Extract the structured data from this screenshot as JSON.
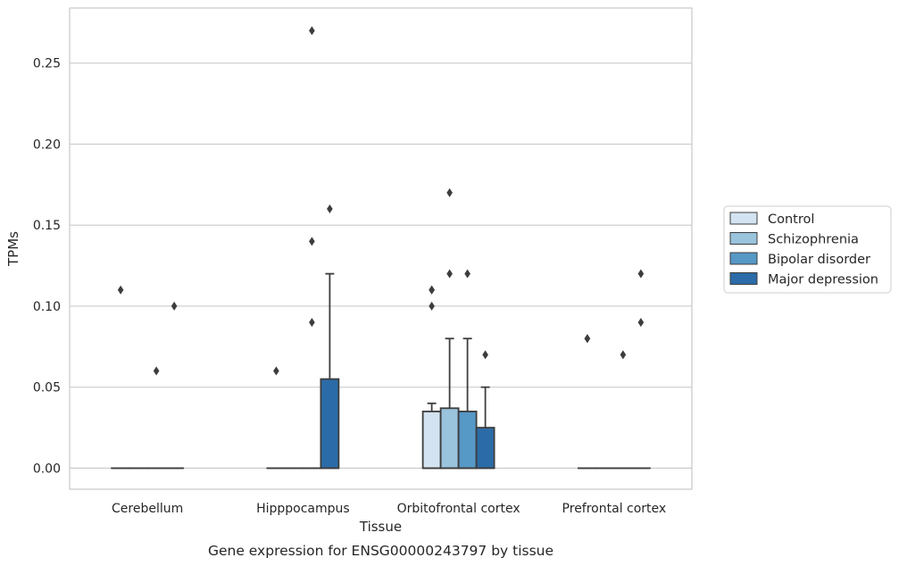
{
  "chart_data": {
    "type": "box",
    "title": "",
    "caption": "Gene expression for ENSG00000243797 by tissue",
    "xlabel": "Tissue",
    "ylabel": "TPMs",
    "ylim": [
      -0.013,
      0.284
    ],
    "yticks": [
      0.0,
      0.05,
      0.1,
      0.15,
      0.2,
      0.25
    ],
    "ytick_labels": [
      "0.00",
      "0.05",
      "0.10",
      "0.15",
      "0.20",
      "0.25"
    ],
    "grid": "horizontal",
    "legend_position": "right",
    "categories": [
      "Cerebellum",
      "Hipppocampus",
      "Orbitofrontal cortex",
      "Prefrontal cortex"
    ],
    "series": [
      {
        "name": "Control",
        "color": "#d3e3f1",
        "boxes": [
          {
            "q1": 0.0,
            "median": 0.0,
            "q3": 0.0,
            "whislo": 0.0,
            "whishi": 0.0,
            "fliers": [
              0.11
            ]
          },
          {
            "q1": 0.0,
            "median": 0.0,
            "q3": 0.0,
            "whislo": 0.0,
            "whishi": 0.0,
            "fliers": [
              0.06
            ]
          },
          {
            "q1": 0.0,
            "median": 0.0,
            "q3": 0.035,
            "whislo": 0.0,
            "whishi": 0.04,
            "fliers": [
              0.1,
              0.11,
              0.11
            ]
          },
          {
            "q1": 0.0,
            "median": 0.0,
            "q3": 0.0,
            "whislo": 0.0,
            "whishi": 0.0,
            "fliers": [
              0.08,
              0.08
            ]
          }
        ]
      },
      {
        "name": "Schizophrenia",
        "color": "#9ac3dc",
        "boxes": [
          {
            "q1": 0.0,
            "median": 0.0,
            "q3": 0.0,
            "whislo": 0.0,
            "whishi": 0.0,
            "fliers": []
          },
          {
            "q1": 0.0,
            "median": 0.0,
            "q3": 0.0,
            "whislo": 0.0,
            "whishi": 0.0,
            "fliers": []
          },
          {
            "q1": 0.0,
            "median": 0.0,
            "q3": 0.037,
            "whislo": 0.0,
            "whishi": 0.08,
            "fliers": [
              0.12,
              0.17
            ]
          },
          {
            "q1": 0.0,
            "median": 0.0,
            "q3": 0.0,
            "whislo": 0.0,
            "whishi": 0.0,
            "fliers": []
          }
        ]
      },
      {
        "name": "Bipolar disorder",
        "color": "#5698c6",
        "boxes": [
          {
            "q1": 0.0,
            "median": 0.0,
            "q3": 0.0,
            "whislo": 0.0,
            "whishi": 0.0,
            "fliers": [
              0.06
            ]
          },
          {
            "q1": 0.0,
            "median": 0.0,
            "q3": 0.0,
            "whislo": 0.0,
            "whishi": 0.0,
            "fliers": [
              0.09,
              0.14,
              0.27
            ]
          },
          {
            "q1": 0.0,
            "median": 0.0,
            "q3": 0.035,
            "whislo": 0.0,
            "whishi": 0.08,
            "fliers": [
              0.12
            ]
          },
          {
            "q1": 0.0,
            "median": 0.0,
            "q3": 0.0,
            "whislo": 0.0,
            "whishi": 0.0,
            "fliers": [
              0.07
            ]
          }
        ]
      },
      {
        "name": "Major depression",
        "color": "#2b6ba7",
        "boxes": [
          {
            "q1": 0.0,
            "median": 0.0,
            "q3": 0.0,
            "whislo": 0.0,
            "whishi": 0.0,
            "fliers": [
              0.1
            ]
          },
          {
            "q1": 0.0,
            "median": 0.0,
            "q3": 0.055,
            "whislo": 0.0,
            "whishi": 0.12,
            "fliers": [
              0.16
            ]
          },
          {
            "q1": 0.0,
            "median": 0.0,
            "q3": 0.025,
            "whislo": 0.0,
            "whishi": 0.05,
            "fliers": [
              0.07
            ]
          },
          {
            "q1": 0.0,
            "median": 0.0,
            "q3": 0.0,
            "whislo": 0.0,
            "whishi": 0.0,
            "fliers": [
              0.09,
              0.12
            ]
          }
        ]
      }
    ]
  }
}
